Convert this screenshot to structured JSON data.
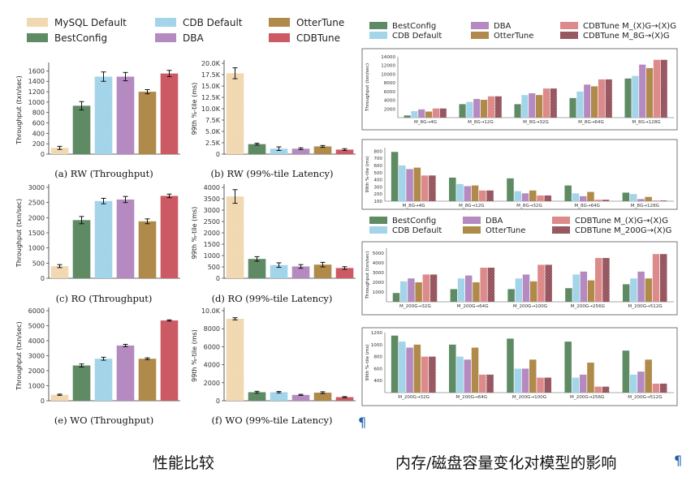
{
  "captions": {
    "left": "性能比较",
    "right": "内存/磁盘容量变化对模型的影响",
    "pilcrow": "¶"
  },
  "colors": {
    "MySQL Default": "#f3dcb8",
    "BestConfig": "#5e8a64",
    "CDB Default": "#9fd2e8",
    "DBA": "#b48ac0",
    "OtterTune": "#b08a4a",
    "CDBTune": "#cc5a64",
    "CDBTune M_(X)G→(X)G": "#dd8a8a",
    "CDBTune M_8G→(X)G": "#8c4c56",
    "CDBTune M_200G→(X)G": "#8c4c56"
  },
  "left_legend": [
    "MySQL Default",
    "CDB Default",
    "OtterTune",
    "BestConfig",
    "DBA",
    "CDBTune"
  ],
  "chart_data": [
    {
      "id": "a",
      "type": "bar",
      "caption": "(a) RW (Throughput)",
      "ylabel": "Throughput (txn/sec)",
      "categories": [
        "MySQL Default",
        "BestConfig",
        "CDB Default",
        "DBA",
        "OtterTune",
        "CDBTune"
      ],
      "values": [
        120,
        930,
        1490,
        1490,
        1200,
        1550
      ],
      "errors": [
        30,
        80,
        90,
        80,
        40,
        60
      ],
      "ylim": [
        0,
        1700
      ],
      "ticks": [
        0,
        200,
        400,
        600,
        800,
        1000,
        1200,
        1400,
        1600
      ],
      "tick_labels": [
        "0",
        "200",
        "400",
        "600",
        "800",
        "1000",
        "1200",
        "1400",
        "1600"
      ]
    },
    {
      "id": "b",
      "type": "bar",
      "caption": "(b) RW (99%-tile Latency)",
      "ylabel": "99th %-tile (ms)",
      "categories": [
        "MySQL Default",
        "BestConfig",
        "CDB Default",
        "DBA",
        "OtterTune",
        "CDBTune"
      ],
      "values": [
        17800,
        2200,
        1200,
        1200,
        1700,
        1000
      ],
      "errors": [
        1200,
        200,
        400,
        200,
        200,
        200
      ],
      "ylim": [
        0,
        20000
      ],
      "ticks": [
        0,
        2500,
        5000,
        7500,
        10000,
        12500,
        15000,
        17500,
        20000
      ],
      "tick_labels": [
        "0",
        "2.5K",
        "5.0K",
        "7.5K",
        "10.0K",
        "12.5K",
        "15.0K",
        "17.5K",
        "20.0K"
      ]
    },
    {
      "id": "c",
      "type": "bar",
      "caption": "(c) RO (Throughput)",
      "ylabel": "Throughput (txn/sec)",
      "categories": [
        "MySQL Default",
        "BestConfig",
        "CDB Default",
        "DBA",
        "OtterTune",
        "CDBTune"
      ],
      "values": [
        400,
        1920,
        2550,
        2600,
        1880,
        2720
      ],
      "errors": [
        50,
        120,
        90,
        100,
        80,
        60
      ],
      "ylim": [
        0,
        3000
      ],
      "ticks": [
        0,
        500,
        1000,
        1500,
        2000,
        2500,
        3000
      ],
      "tick_labels": [
        "0",
        "500",
        "1000",
        "1500",
        "2000",
        "2500",
        "3000"
      ]
    },
    {
      "id": "d",
      "type": "bar",
      "caption": "(d) RO (99%-tile Latency)",
      "ylabel": "99th %-tile (ms)",
      "categories": [
        "MySQL Default",
        "BestConfig",
        "CDB Default",
        "DBA",
        "OtterTune",
        "CDBTune"
      ],
      "values": [
        3600,
        850,
        580,
        520,
        600,
        450
      ],
      "errors": [
        300,
        100,
        100,
        80,
        100,
        60
      ],
      "ylim": [
        0,
        4000
      ],
      "ticks": [
        0,
        500,
        1000,
        1500,
        2000,
        2500,
        3000,
        3500,
        4000
      ],
      "tick_labels": [
        "0",
        "500",
        "1000",
        "1500",
        "2000",
        "2500",
        "3000",
        "3500",
        "4000"
      ]
    },
    {
      "id": "e",
      "type": "bar",
      "caption": "(e) WO (Throughput)",
      "ylabel": "Throughput (txn/sec)",
      "categories": [
        "MySQL Default",
        "BestConfig",
        "CDB Default",
        "DBA",
        "OtterTune",
        "CDBTune"
      ],
      "values": [
        400,
        2350,
        2800,
        3680,
        2800,
        5350
      ],
      "errors": [
        40,
        100,
        100,
        80,
        60,
        40
      ],
      "ylim": [
        0,
        6000
      ],
      "ticks": [
        0,
        1000,
        2000,
        3000,
        4000,
        5000,
        6000
      ],
      "tick_labels": [
        "0",
        "1000",
        "2000",
        "3000",
        "4000",
        "5000",
        "6000"
      ]
    },
    {
      "id": "f",
      "type": "bar",
      "caption": "(f) WO (99%-tile Latency)",
      "ylabel": "99th %-tile (ms)",
      "categories": [
        "MySQL Default",
        "BestConfig",
        "CDB Default",
        "DBA",
        "OtterTune",
        "CDBTune"
      ],
      "values": [
        9100,
        950,
        950,
        650,
        900,
        400
      ],
      "errors": [
        120,
        100,
        80,
        60,
        100,
        60
      ],
      "ylim": [
        0,
        10000
      ],
      "ticks": [
        0,
        2000,
        4000,
        6000,
        8000,
        10000
      ],
      "tick_labels": [
        "0",
        "2000",
        "4000",
        "6000",
        "8000",
        "10.0K"
      ]
    },
    {
      "id": "r1",
      "type": "bar",
      "ylabel": "Throughput (txn/sec)",
      "legend": [
        "BestConfig",
        "CDB Default",
        "DBA",
        "OtterTune",
        "CDBTune M_(X)G→(X)G",
        "CDBTune M_8G→(X)G"
      ],
      "categories": [
        "M_8G→4G",
        "M_8G→12G",
        "M_8G→32G",
        "M_8G→64G",
        "M_8G→128G"
      ],
      "series": [
        {
          "name": "BestConfig",
          "values": [
            500,
            3100,
            3100,
            4500,
            9000
          ]
        },
        {
          "name": "CDB Default",
          "values": [
            1500,
            3600,
            5200,
            6000,
            9600
          ]
        },
        {
          "name": "DBA",
          "values": [
            1900,
            4300,
            5600,
            7600,
            12200
          ]
        },
        {
          "name": "OtterTune",
          "values": [
            1400,
            4100,
            5200,
            7200,
            11400
          ]
        },
        {
          "name": "CDBTune M_(X)G→(X)G",
          "values": [
            2100,
            4900,
            6700,
            8800,
            13300
          ]
        },
        {
          "name": "CDBTune M_8G→(X)G",
          "values": [
            2100,
            4900,
            6700,
            8800,
            13300
          ]
        }
      ],
      "ylim": [
        0,
        14000
      ],
      "ticks": [
        2000,
        4000,
        6000,
        8000,
        10000,
        12000,
        14000
      ],
      "tick_labels": [
        "2000",
        "4000",
        "6000",
        "8000",
        "10000",
        "12000",
        "14000"
      ]
    },
    {
      "id": "r2",
      "type": "bar",
      "ylabel": "99th %-tile (ms)",
      "categories": [
        "M_8G→4G",
        "M_8G→12G",
        "M_8G→32G",
        "M_8G→64G",
        "M_8G→128G"
      ],
      "series": [
        {
          "name": "BestConfig",
          "values": [
            790,
            430,
            420,
            320,
            220
          ]
        },
        {
          "name": "CDB Default",
          "values": [
            600,
            340,
            240,
            210,
            200
          ]
        },
        {
          "name": "DBA",
          "values": [
            550,
            310,
            210,
            170,
            130
          ]
        },
        {
          "name": "OtterTune",
          "values": [
            570,
            320,
            250,
            230,
            160
          ]
        },
        {
          "name": "CDBTune M_(X)G→(X)G",
          "values": [
            460,
            250,
            180,
            120,
            110
          ]
        },
        {
          "name": "CDBTune M_8G→(X)G",
          "values": [
            460,
            250,
            180,
            120,
            110
          ]
        }
      ],
      "ylim": [
        100,
        850
      ],
      "ticks": [
        100,
        200,
        300,
        400,
        500,
        600,
        700,
        800
      ],
      "tick_labels": [
        "100",
        "200",
        "300",
        "400",
        "500",
        "600",
        "700",
        "800"
      ]
    },
    {
      "id": "r3",
      "type": "bar",
      "ylabel": "Throughput (txn/sec)",
      "legend": [
        "BestConfig",
        "CDB Default",
        "DBA",
        "OtterTune",
        "CDBTune M_(X)G→(X)G",
        "CDBTune M_200G→(X)G"
      ],
      "categories": [
        "M_200G→32G",
        "M_200G→64G",
        "M_200G→100G",
        "M_200G→256G",
        "M_200G→512G"
      ],
      "series": [
        {
          "name": "BestConfig",
          "values": [
            900,
            1300,
            1300,
            1400,
            1800
          ]
        },
        {
          "name": "CDB Default",
          "values": [
            2100,
            2400,
            2400,
            2800,
            2400
          ]
        },
        {
          "name": "DBA",
          "values": [
            2400,
            2700,
            2800,
            3100,
            3100
          ]
        },
        {
          "name": "OtterTune",
          "values": [
            2000,
            2000,
            2100,
            2200,
            2400
          ]
        },
        {
          "name": "CDBTune M_(X)G→(X)G",
          "values": [
            2800,
            3500,
            3800,
            4500,
            4900
          ]
        },
        {
          "name": "CDBTune M_200G→(X)G",
          "values": [
            2800,
            3500,
            3800,
            4500,
            4900
          ]
        }
      ],
      "ylim": [
        0,
        5500
      ],
      "ticks": [
        1000,
        2000,
        3000,
        4000,
        5000
      ],
      "tick_labels": [
        "1000",
        "2000",
        "3000",
        "4000",
        "5000"
      ]
    },
    {
      "id": "r4",
      "type": "bar",
      "ylabel": "99th %-tile (ms)",
      "categories": [
        "M_200G→32G",
        "M_200G→64G",
        "M_200G→100G",
        "M_200G→256G",
        "M_200G→512G"
      ],
      "series": [
        {
          "name": "BestConfig",
          "values": [
            1150,
            1000,
            1100,
            1050,
            900
          ]
        },
        {
          "name": "CDB Default",
          "values": [
            1050,
            800,
            600,
            450,
            500
          ]
        },
        {
          "name": "DBA",
          "values": [
            950,
            750,
            600,
            500,
            550
          ]
        },
        {
          "name": "OtterTune",
          "values": [
            1000,
            950,
            750,
            700,
            750
          ]
        },
        {
          "name": "CDBTune M_(X)G→(X)G",
          "values": [
            800,
            500,
            450,
            300,
            350
          ]
        },
        {
          "name": "CDBTune M_200G→(X)G",
          "values": [
            800,
            500,
            450,
            300,
            350
          ]
        }
      ],
      "ylim": [
        200,
        1200
      ],
      "ticks": [
        400,
        600,
        800,
        1000,
        1200
      ],
      "tick_labels": [
        "400",
        "600",
        "800",
        "1000",
        "1200"
      ]
    }
  ]
}
